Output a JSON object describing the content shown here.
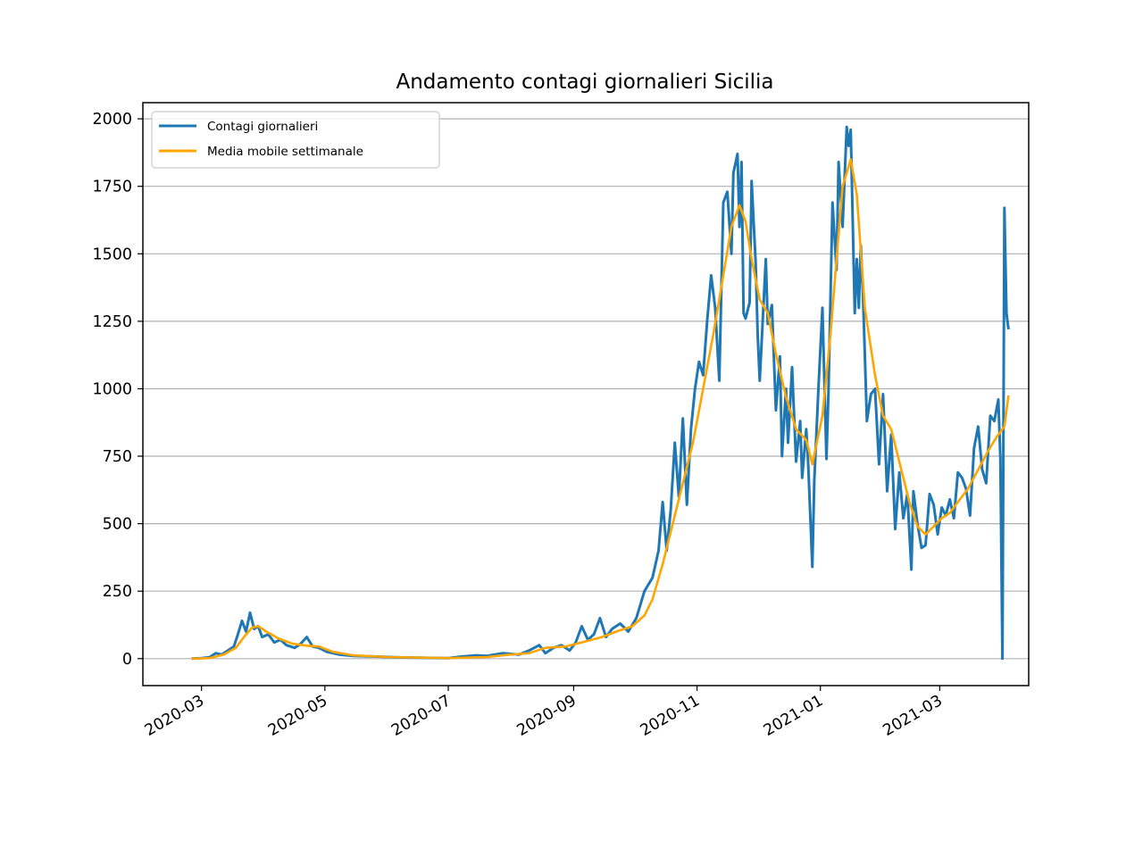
{
  "chart_data": {
    "type": "line",
    "title": "Andamento contagi giornalieri Sicilia",
    "xlabel": "",
    "ylabel": "",
    "xlim": [
      "2020-02-01",
      "2021-04-14"
    ],
    "ylim": [
      -100,
      2060
    ],
    "grid": "horizontal",
    "legend_position": "top-left",
    "x_ticks": [
      "2020-03",
      "2020-05",
      "2020-07",
      "2020-09",
      "2020-11",
      "2021-01",
      "2021-03"
    ],
    "y_ticks": [
      0,
      250,
      500,
      750,
      1000,
      1250,
      1500,
      1750,
      2000
    ],
    "series": [
      {
        "name": "Contagi giornalieri",
        "color": "#1f77b4",
        "points": [
          [
            "2020-02-25",
            0
          ],
          [
            "2020-03-01",
            2
          ],
          [
            "2020-03-05",
            5
          ],
          [
            "2020-03-08",
            20
          ],
          [
            "2020-03-11",
            15
          ],
          [
            "2020-03-14",
            30
          ],
          [
            "2020-03-17",
            45
          ],
          [
            "2020-03-19",
            90
          ],
          [
            "2020-03-21",
            140
          ],
          [
            "2020-03-23",
            100
          ],
          [
            "2020-03-25",
            170
          ],
          [
            "2020-03-27",
            110
          ],
          [
            "2020-03-29",
            120
          ],
          [
            "2020-03-31",
            80
          ],
          [
            "2020-04-03",
            90
          ],
          [
            "2020-04-06",
            60
          ],
          [
            "2020-04-09",
            70
          ],
          [
            "2020-04-12",
            50
          ],
          [
            "2020-04-16",
            40
          ],
          [
            "2020-04-19",
            55
          ],
          [
            "2020-04-22",
            80
          ],
          [
            "2020-04-25",
            45
          ],
          [
            "2020-04-28",
            40
          ],
          [
            "2020-05-02",
            25
          ],
          [
            "2020-05-08",
            15
          ],
          [
            "2020-05-15",
            10
          ],
          [
            "2020-05-25",
            8
          ],
          [
            "2020-06-05",
            5
          ],
          [
            "2020-06-20",
            3
          ],
          [
            "2020-07-01",
            2
          ],
          [
            "2020-07-08",
            8
          ],
          [
            "2020-07-15",
            12
          ],
          [
            "2020-07-20",
            10
          ],
          [
            "2020-07-28",
            20
          ],
          [
            "2020-08-05",
            15
          ],
          [
            "2020-08-10",
            30
          ],
          [
            "2020-08-15",
            50
          ],
          [
            "2020-08-18",
            20
          ],
          [
            "2020-08-22",
            40
          ],
          [
            "2020-08-26",
            50
          ],
          [
            "2020-08-30",
            30
          ],
          [
            "2020-09-02",
            60
          ],
          [
            "2020-09-05",
            120
          ],
          [
            "2020-09-08",
            70
          ],
          [
            "2020-09-11",
            90
          ],
          [
            "2020-09-14",
            150
          ],
          [
            "2020-09-17",
            80
          ],
          [
            "2020-09-20",
            110
          ],
          [
            "2020-09-24",
            130
          ],
          [
            "2020-09-28",
            100
          ],
          [
            "2020-10-02",
            150
          ],
          [
            "2020-10-06",
            250
          ],
          [
            "2020-10-10",
            300
          ],
          [
            "2020-10-13",
            400
          ],
          [
            "2020-10-15",
            580
          ],
          [
            "2020-10-17",
            400
          ],
          [
            "2020-10-19",
            550
          ],
          [
            "2020-10-21",
            800
          ],
          [
            "2020-10-23",
            600
          ],
          [
            "2020-10-25",
            890
          ],
          [
            "2020-10-27",
            570
          ],
          [
            "2020-10-29",
            850
          ],
          [
            "2020-10-31",
            1000
          ],
          [
            "2020-11-02",
            1100
          ],
          [
            "2020-11-04",
            1050
          ],
          [
            "2020-11-06",
            1250
          ],
          [
            "2020-11-08",
            1420
          ],
          [
            "2020-11-10",
            1300
          ],
          [
            "2020-11-12",
            1030
          ],
          [
            "2020-11-14",
            1690
          ],
          [
            "2020-11-16",
            1730
          ],
          [
            "2020-11-18",
            1500
          ],
          [
            "2020-11-19",
            1800
          ],
          [
            "2020-11-21",
            1870
          ],
          [
            "2020-11-22",
            1600
          ],
          [
            "2020-11-23",
            1840
          ],
          [
            "2020-11-24",
            1280
          ],
          [
            "2020-11-25",
            1260
          ],
          [
            "2020-11-27",
            1320
          ],
          [
            "2020-11-28",
            1770
          ],
          [
            "2020-11-30",
            1470
          ],
          [
            "2020-12-01",
            1200
          ],
          [
            "2020-12-02",
            1030
          ],
          [
            "2020-12-04",
            1330
          ],
          [
            "2020-12-05",
            1480
          ],
          [
            "2020-12-06",
            1240
          ],
          [
            "2020-12-08",
            1310
          ],
          [
            "2020-12-10",
            920
          ],
          [
            "2020-12-12",
            1120
          ],
          [
            "2020-12-13",
            750
          ],
          [
            "2020-12-15",
            1000
          ],
          [
            "2020-12-16",
            800
          ],
          [
            "2020-12-18",
            1080
          ],
          [
            "2020-12-20",
            730
          ],
          [
            "2020-12-22",
            880
          ],
          [
            "2020-12-23",
            670
          ],
          [
            "2020-12-25",
            850
          ],
          [
            "2020-12-26",
            720
          ],
          [
            "2020-12-28",
            340
          ],
          [
            "2020-12-29",
            660
          ],
          [
            "2020-12-31",
            1000
          ],
          [
            "2021-01-02",
            1300
          ],
          [
            "2021-01-04",
            740
          ],
          [
            "2021-01-05",
            990
          ],
          [
            "2021-01-07",
            1690
          ],
          [
            "2021-01-09",
            1440
          ],
          [
            "2021-01-10",
            1840
          ],
          [
            "2021-01-12",
            1600
          ],
          [
            "2021-01-14",
            1970
          ],
          [
            "2021-01-15",
            1900
          ],
          [
            "2021-01-16",
            1960
          ],
          [
            "2021-01-18",
            1280
          ],
          [
            "2021-01-19",
            1480
          ],
          [
            "2021-01-20",
            1300
          ],
          [
            "2021-01-21",
            1530
          ],
          [
            "2021-01-22",
            1360
          ],
          [
            "2021-01-24",
            880
          ],
          [
            "2021-01-26",
            980
          ],
          [
            "2021-01-28",
            1000
          ],
          [
            "2021-01-30",
            720
          ],
          [
            "2021-02-01",
            980
          ],
          [
            "2021-02-03",
            620
          ],
          [
            "2021-02-05",
            830
          ],
          [
            "2021-02-07",
            480
          ],
          [
            "2021-02-09",
            690
          ],
          [
            "2021-02-11",
            520
          ],
          [
            "2021-02-13",
            610
          ],
          [
            "2021-02-15",
            330
          ],
          [
            "2021-02-16",
            620
          ],
          [
            "2021-02-18",
            500
          ],
          [
            "2021-02-20",
            410
          ],
          [
            "2021-02-22",
            420
          ],
          [
            "2021-02-24",
            610
          ],
          [
            "2021-02-26",
            570
          ],
          [
            "2021-02-28",
            460
          ],
          [
            "2021-03-02",
            560
          ],
          [
            "2021-03-04",
            530
          ],
          [
            "2021-03-06",
            590
          ],
          [
            "2021-03-08",
            520
          ],
          [
            "2021-03-10",
            690
          ],
          [
            "2021-03-12",
            670
          ],
          [
            "2021-03-14",
            630
          ],
          [
            "2021-03-16",
            530
          ],
          [
            "2021-03-18",
            780
          ],
          [
            "2021-03-20",
            860
          ],
          [
            "2021-03-22",
            700
          ],
          [
            "2021-03-24",
            650
          ],
          [
            "2021-03-26",
            900
          ],
          [
            "2021-03-28",
            880
          ],
          [
            "2021-03-30",
            960
          ],
          [
            "2021-03-31",
            740
          ],
          [
            "2021-04-01",
            0
          ],
          [
            "2021-04-02",
            1670
          ],
          [
            "2021-04-03",
            1280
          ],
          [
            "2021-04-04",
            1220
          ]
        ]
      },
      {
        "name": "Media mobile settimanale",
        "color": "#ffa500",
        "points": [
          [
            "2020-02-25",
            0
          ],
          [
            "2020-03-05",
            2
          ],
          [
            "2020-03-12",
            15
          ],
          [
            "2020-03-18",
            40
          ],
          [
            "2020-03-22",
            80
          ],
          [
            "2020-03-26",
            115
          ],
          [
            "2020-03-29",
            120
          ],
          [
            "2020-04-02",
            100
          ],
          [
            "2020-04-08",
            75
          ],
          [
            "2020-04-15",
            55
          ],
          [
            "2020-04-22",
            48
          ],
          [
            "2020-04-28",
            45
          ],
          [
            "2020-05-05",
            25
          ],
          [
            "2020-05-15",
            12
          ],
          [
            "2020-06-01",
            6
          ],
          [
            "2020-07-01",
            2
          ],
          [
            "2020-07-20",
            6
          ],
          [
            "2020-08-01",
            15
          ],
          [
            "2020-08-10",
            20
          ],
          [
            "2020-08-18",
            40
          ],
          [
            "2020-08-28",
            45
          ],
          [
            "2020-09-05",
            60
          ],
          [
            "2020-09-15",
            80
          ],
          [
            "2020-09-22",
            100
          ],
          [
            "2020-09-30",
            120
          ],
          [
            "2020-10-06",
            160
          ],
          [
            "2020-10-10",
            220
          ],
          [
            "2020-10-15",
            350
          ],
          [
            "2020-10-20",
            500
          ],
          [
            "2020-10-25",
            650
          ],
          [
            "2020-10-30",
            800
          ],
          [
            "2020-11-04",
            1000
          ],
          [
            "2020-11-09",
            1200
          ],
          [
            "2020-11-14",
            1420
          ],
          [
            "2020-11-18",
            1600
          ],
          [
            "2020-11-22",
            1680
          ],
          [
            "2020-11-25",
            1620
          ],
          [
            "2020-11-28",
            1480
          ],
          [
            "2020-12-02",
            1330
          ],
          [
            "2020-12-06",
            1280
          ],
          [
            "2020-12-10",
            1130
          ],
          [
            "2020-12-15",
            970
          ],
          [
            "2020-12-20",
            850
          ],
          [
            "2020-12-25",
            810
          ],
          [
            "2020-12-28",
            720
          ],
          [
            "2021-01-02",
            900
          ],
          [
            "2021-01-06",
            1200
          ],
          [
            "2021-01-09",
            1480
          ],
          [
            "2021-01-12",
            1750
          ],
          [
            "2021-01-16",
            1850
          ],
          [
            "2021-01-19",
            1720
          ],
          [
            "2021-01-23",
            1300
          ],
          [
            "2021-01-28",
            1050
          ],
          [
            "2021-02-01",
            900
          ],
          [
            "2021-02-05",
            850
          ],
          [
            "2021-02-10",
            700
          ],
          [
            "2021-02-14",
            580
          ],
          [
            "2021-02-18",
            490
          ],
          [
            "2021-02-22",
            460
          ],
          [
            "2021-02-26",
            490
          ],
          [
            "2021-03-02",
            520
          ],
          [
            "2021-03-06",
            540
          ],
          [
            "2021-03-10",
            580
          ],
          [
            "2021-03-15",
            630
          ],
          [
            "2021-03-20",
            700
          ],
          [
            "2021-03-25",
            770
          ],
          [
            "2021-03-29",
            820
          ],
          [
            "2021-03-31",
            840
          ],
          [
            "2021-04-02",
            860
          ],
          [
            "2021-04-04",
            975
          ]
        ]
      }
    ]
  }
}
